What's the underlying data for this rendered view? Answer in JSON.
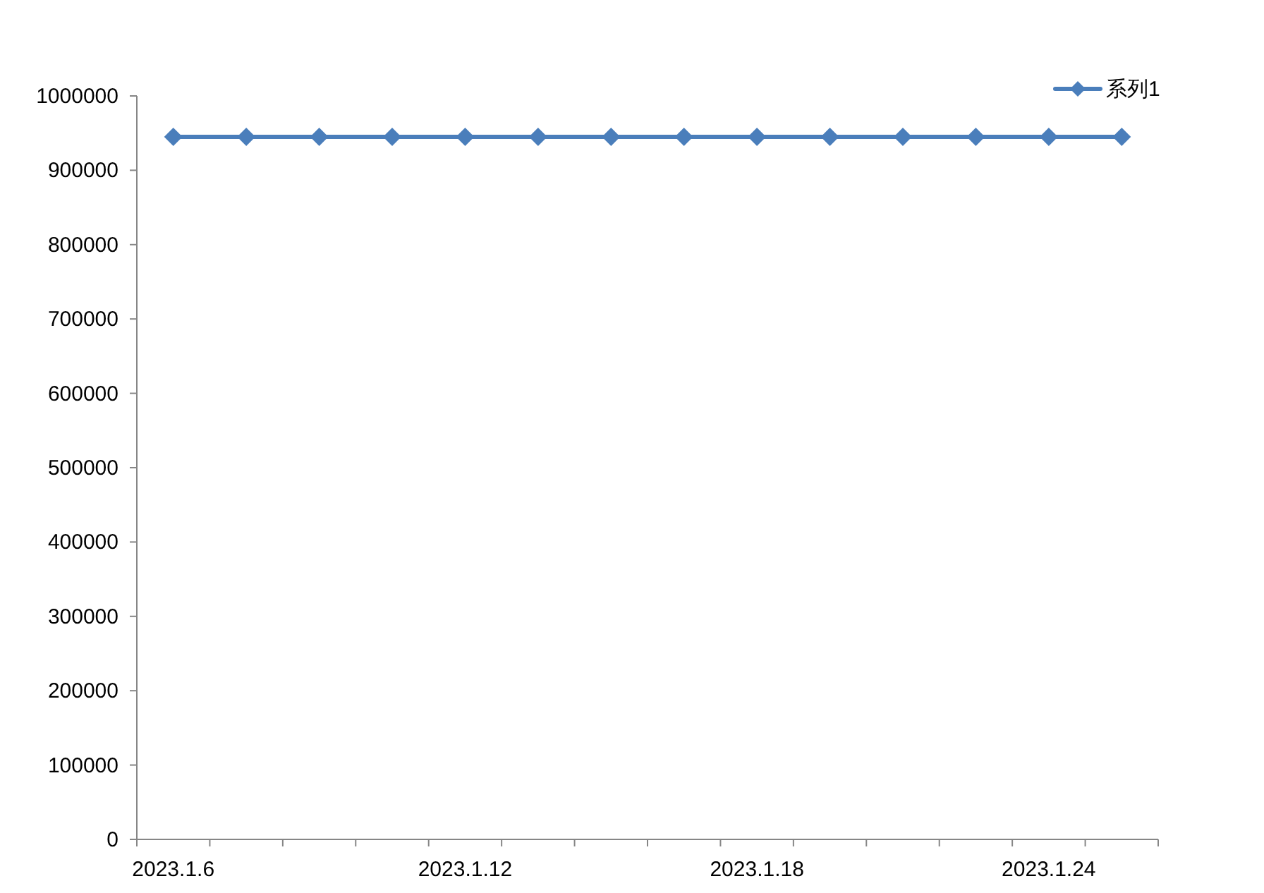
{
  "chart_data": {
    "type": "line",
    "categories": [
      "2023.1.6",
      null,
      null,
      null,
      "2023.1.12",
      null,
      null,
      null,
      "2023.1.18",
      null,
      null,
      null,
      "2023.1.24",
      null
    ],
    "series": [
      {
        "name": "系列1",
        "color": "#4a7ebb",
        "values": [
          945000,
          945000,
          945000,
          945000,
          945000,
          945000,
          945000,
          945000,
          945000,
          945000,
          945000,
          945000,
          945000,
          945000
        ]
      }
    ],
    "ylim": [
      0,
      1000000
    ],
    "yticks": [
      0,
      100000,
      200000,
      300000,
      400000,
      500000,
      600000,
      700000,
      800000,
      900000,
      1000000
    ],
    "legend": "top right",
    "marker": "diamond",
    "line_style": "solid"
  }
}
